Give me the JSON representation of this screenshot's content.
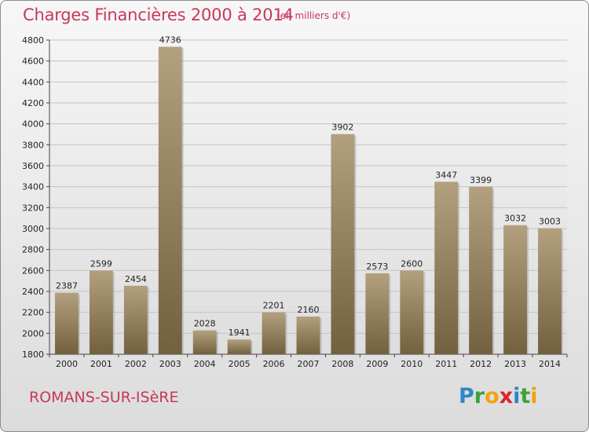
{
  "chart_data": {
    "type": "bar",
    "title": "Charges Financières 2000 à 2014",
    "subtitle": "(en milliers d'€)",
    "categories": [
      "2000",
      "2001",
      "2002",
      "2003",
      "2004",
      "2005",
      "2006",
      "2007",
      "2008",
      "2009",
      "2010",
      "2011",
      "2012",
      "2013",
      "2014"
    ],
    "values": [
      2387,
      2599,
      2454,
      4736,
      2028,
      1941,
      2201,
      2160,
      3902,
      2573,
      2600,
      3447,
      3399,
      3032,
      3003
    ],
    "ylim": [
      1800,
      4800
    ],
    "yticks": [
      1800,
      2000,
      2200,
      2400,
      2600,
      2800,
      3000,
      3200,
      3400,
      3600,
      3800,
      4000,
      4200,
      4400,
      4600,
      4800
    ],
    "grid": true,
    "bar_color_top": "#b2a07e",
    "bar_color_bottom": "#72603f"
  },
  "footer": {
    "city": "ROMANS-SUR-ISèRE",
    "logo_letters": [
      {
        "ch": "P",
        "color": "#2e86c9"
      },
      {
        "ch": "r",
        "color": "#3aa335"
      },
      {
        "ch": "o",
        "color": "#f2a20d"
      },
      {
        "ch": "x",
        "color": "#d9262b"
      },
      {
        "ch": "i",
        "color": "#2e86c9"
      },
      {
        "ch": "t",
        "color": "#3aa335"
      },
      {
        "ch": "i",
        "color": "#f2a20d"
      }
    ]
  },
  "colors": {
    "accent": "#c8385a",
    "grid": "#c4c4c4",
    "axis": "#444444"
  }
}
